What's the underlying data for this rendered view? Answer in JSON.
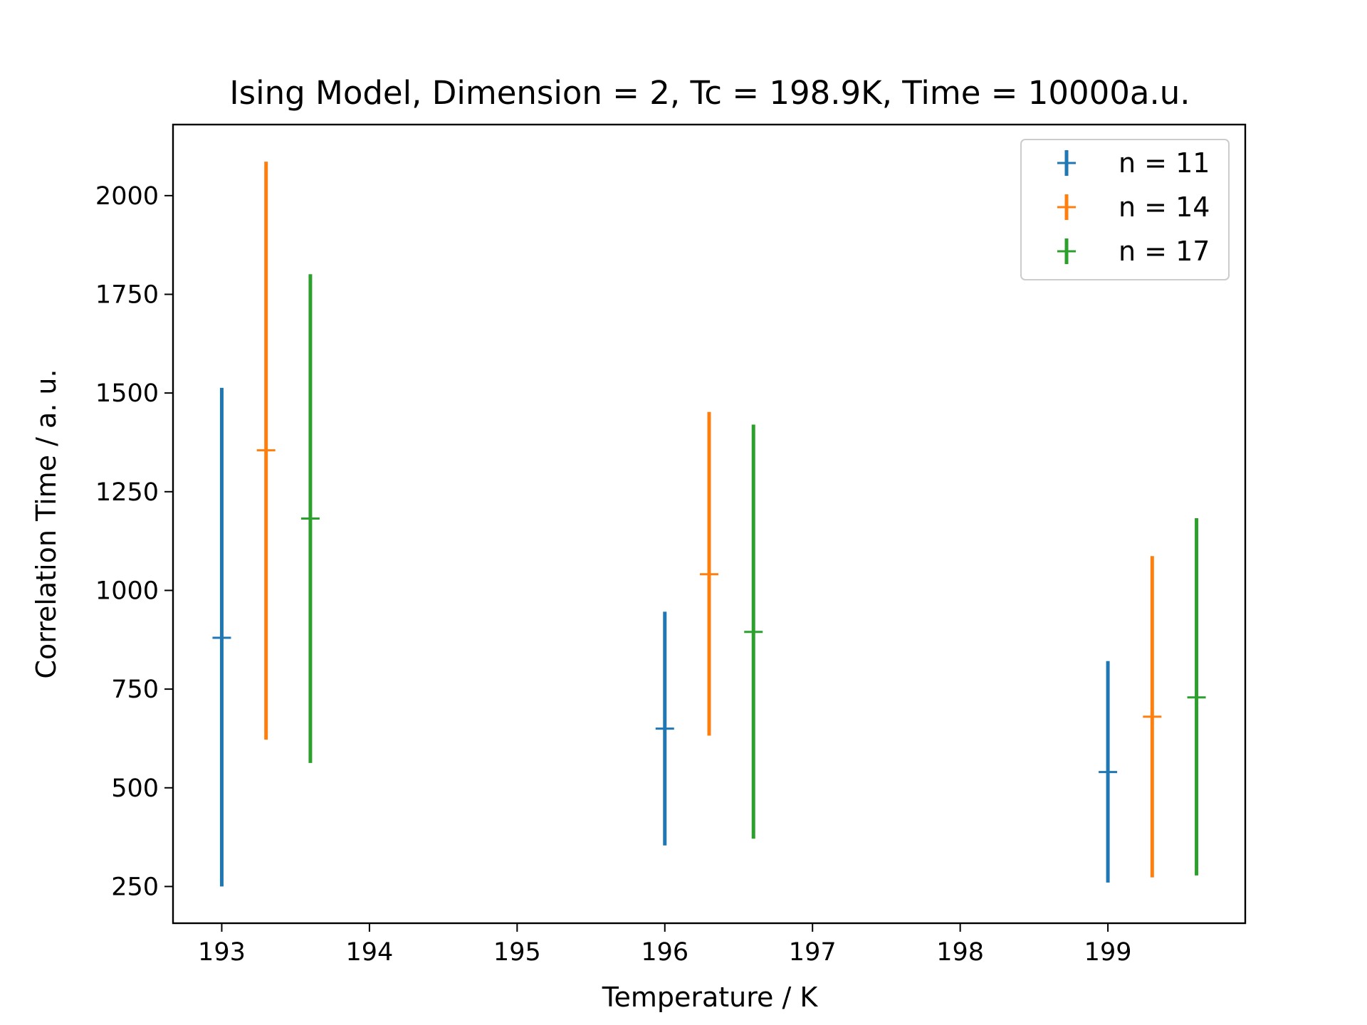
{
  "chart_data": {
    "type": "errorbar",
    "title": "Ising Model, Dimension = 2, Tc = 198.9K, Time = 10000a.u.",
    "xlabel": "Temperature / K",
    "ylabel": "Correlation Time / a. u.",
    "xlim": [
      192.67,
      199.93
    ],
    "ylim": [
      157,
      2180
    ],
    "xticks": [
      193,
      194,
      195,
      196,
      197,
      198,
      199
    ],
    "xtick_labels": [
      "193",
      "194",
      "195",
      "196",
      "197",
      "198",
      "199"
    ],
    "yticks": [
      250,
      500,
      750,
      1000,
      1250,
      1500,
      1750,
      2000
    ],
    "ytick_labels": [
      "250",
      "500",
      "750",
      "1000",
      "1250",
      "1500",
      "1750",
      "2000"
    ],
    "grid": false,
    "legend_position": "top-right",
    "series": [
      {
        "name": "n = 11",
        "color": "#1f77b4",
        "points": [
          {
            "x": 193.0,
            "y": 880,
            "ylow": 250,
            "yhigh": 1513
          },
          {
            "x": 196.0,
            "y": 650,
            "ylow": 354,
            "yhigh": 946
          },
          {
            "x": 199.0,
            "y": 540,
            "ylow": 260,
            "yhigh": 821
          }
        ]
      },
      {
        "name": "n = 14",
        "color": "#ff7f0e",
        "points": [
          {
            "x": 193.3,
            "y": 1355,
            "ylow": 622,
            "yhigh": 2086
          },
          {
            "x": 196.3,
            "y": 1041,
            "ylow": 632,
            "yhigh": 1452
          },
          {
            "x": 199.3,
            "y": 680,
            "ylow": 273,
            "yhigh": 1087
          }
        ]
      },
      {
        "name": "n = 17",
        "color": "#2ca02c",
        "points": [
          {
            "x": 193.6,
            "y": 1182,
            "ylow": 563,
            "yhigh": 1801
          },
          {
            "x": 196.6,
            "y": 895,
            "ylow": 371,
            "yhigh": 1420
          },
          {
            "x": 199.6,
            "y": 729,
            "ylow": 278,
            "yhigh": 1183
          }
        ]
      }
    ]
  }
}
